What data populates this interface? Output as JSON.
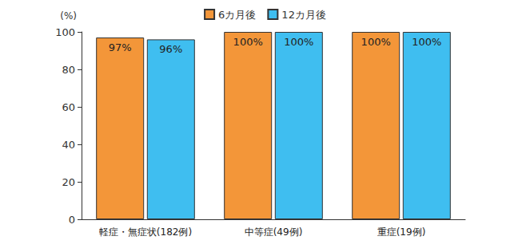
{
  "chart_data": {
    "type": "bar",
    "y_label": "(%)",
    "categories": [
      "軽症・無症状(182例)",
      "中等症(49例)",
      "重症(19例)"
    ],
    "series": [
      {
        "name": "6カ月後",
        "color": "#f39639",
        "values": [
          97,
          100,
          100
        ],
        "value_labels": [
          "97%",
          "100%",
          "100%"
        ]
      },
      {
        "name": "12カ月後",
        "color": "#3fbef0",
        "values": [
          96,
          100,
          100
        ],
        "value_labels": [
          "96%",
          "100%",
          "100%"
        ]
      }
    ],
    "ylim": [
      0,
      100
    ],
    "yticks": [
      0,
      20,
      40,
      60,
      80,
      100
    ],
    "grid": false,
    "legend": "top",
    "data_labels": true
  }
}
